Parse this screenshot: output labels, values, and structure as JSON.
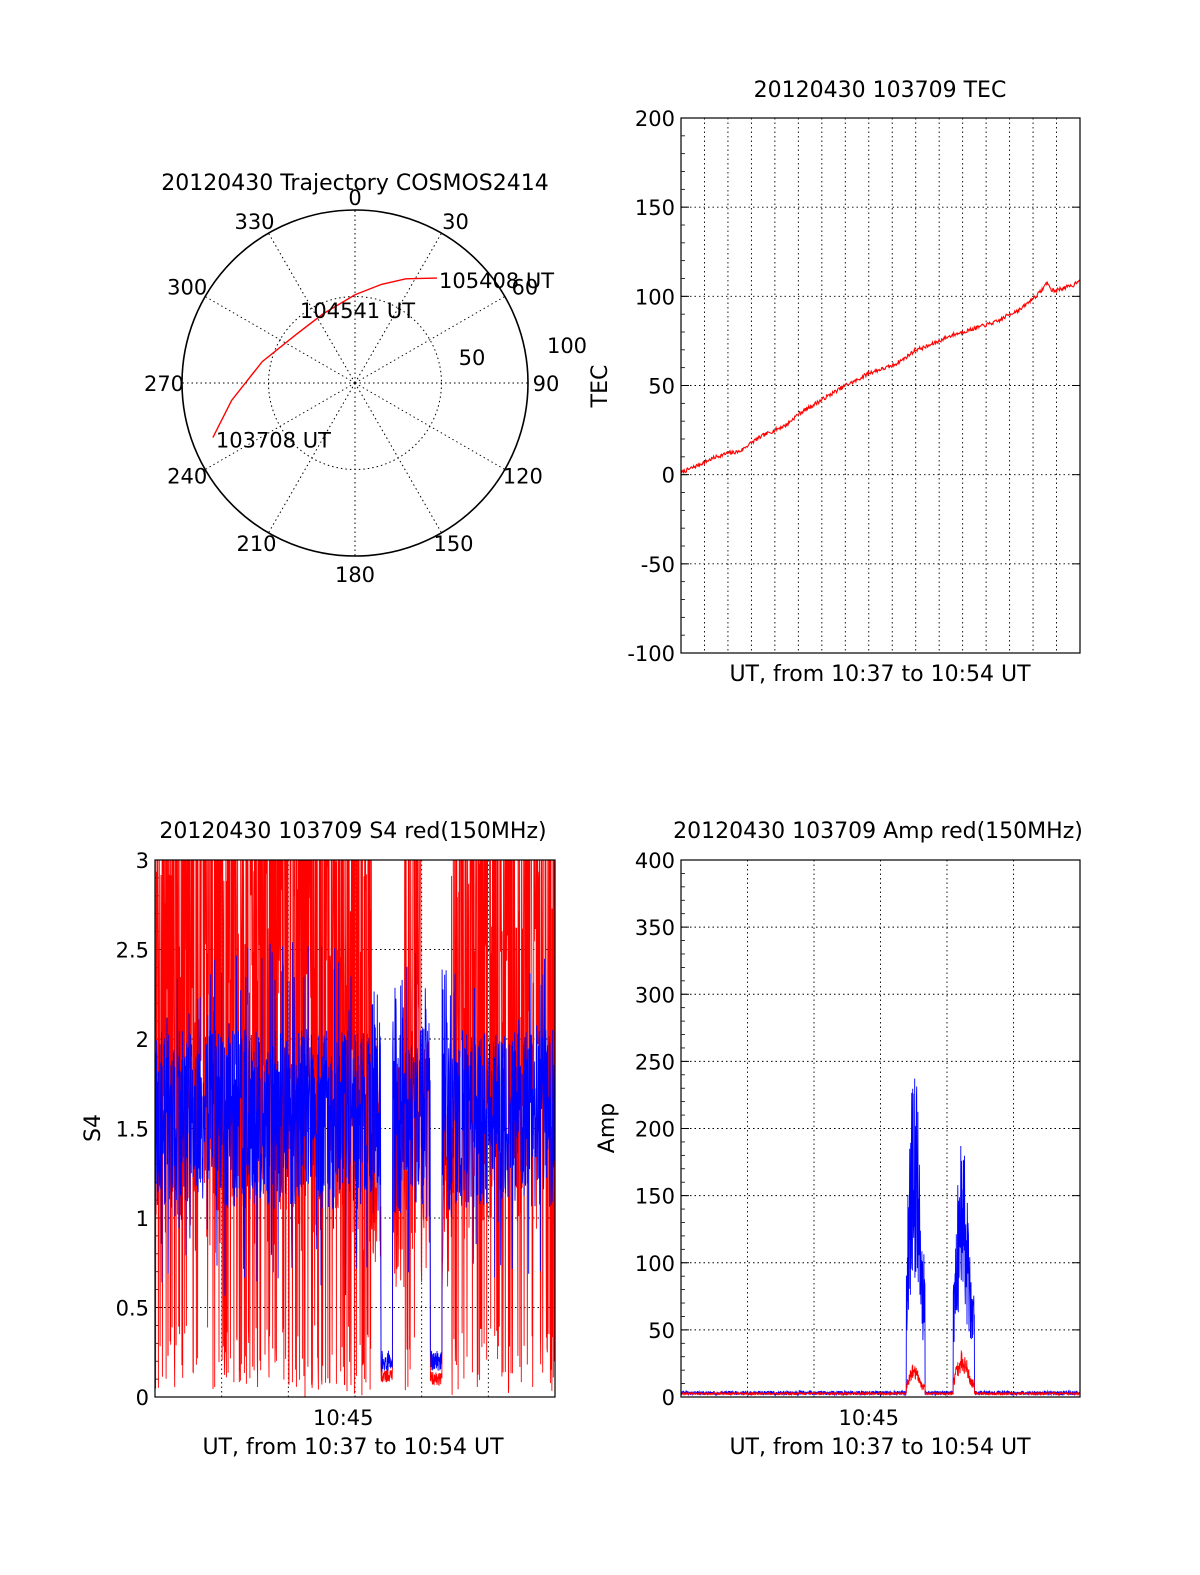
{
  "colors": {
    "red": "#ff0000",
    "blue": "#0000ff",
    "axis": "#000000",
    "grid": "#000000"
  },
  "chart_data": [
    {
      "id": "trajectory",
      "type": "polar",
      "title": "20120430 Trajectory COSMOS2414",
      "angle_labels": [
        "0",
        "30",
        "60",
        "90",
        "120",
        "150",
        "180",
        "210",
        "240",
        "270",
        "300",
        "330"
      ],
      "angle_values": [
        0,
        30,
        60,
        90,
        120,
        150,
        180,
        210,
        240,
        270,
        300,
        330
      ],
      "radius_labels": [
        "50",
        "100"
      ],
      "radius_range": [
        0,
        100
      ],
      "grid": true,
      "track_points": [
        {
          "az": 249,
          "r": 88
        },
        {
          "az": 262,
          "r": 72
        },
        {
          "az": 283,
          "r": 55
        },
        {
          "az": 310,
          "r": 44
        },
        {
          "az": 335,
          "r": 44
        },
        {
          "az": 0,
          "r": 51
        },
        {
          "az": 15,
          "r": 59
        },
        {
          "az": 26,
          "r": 67
        },
        {
          "az": 34,
          "r": 73
        },
        {
          "az": 38,
          "r": 77
        }
      ],
      "annotations": [
        {
          "text": "105408 UT",
          "az": 38,
          "r": 77
        },
        {
          "text": "104541 UT",
          "az": 333,
          "r": 44
        },
        {
          "text": "103708 UT",
          "az": 249,
          "r": 88
        }
      ]
    },
    {
      "id": "tec",
      "type": "line",
      "title": "20120430 103709 TEC",
      "ylabel": "TEC",
      "xlabel": "UT, from 10:37 to 10:54 UT",
      "ylim": [
        -100,
        200
      ],
      "yticks": [
        "-100",
        "-50",
        "0",
        "50",
        "100",
        "150",
        "200"
      ],
      "xlim": [
        0,
        17
      ],
      "grid": true,
      "series": [
        {
          "color": "red",
          "x": [
            0,
            0.5,
            1,
            1.5,
            2,
            2.5,
            3,
            3.5,
            4,
            4.5,
            5,
            5.5,
            6,
            6.5,
            7,
            7.5,
            8,
            8.5,
            9,
            9.5,
            10,
            10.5,
            11,
            11.5,
            12,
            12.5,
            13,
            13.5,
            14,
            14.5,
            15,
            15.2,
            15.4,
            15.6,
            15.75,
            15.9,
            16.1,
            16.4,
            16.7,
            17
          ],
          "y": [
            1,
            4,
            7,
            10,
            12,
            13,
            18,
            22,
            25,
            28,
            34,
            38,
            42,
            46,
            50,
            53,
            57,
            59,
            61,
            65,
            70,
            72,
            75,
            78,
            80,
            82,
            84,
            86,
            90,
            93,
            99,
            101,
            104,
            108,
            104,
            103,
            104,
            105,
            106,
            110
          ]
        }
      ]
    },
    {
      "id": "s4",
      "type": "line",
      "title": "20120430 103709 S4 red(150MHz)",
      "ylabel": "S4",
      "xlabel": "UT, from 10:37 to 10:54 UT",
      "xticklabel": "10:45",
      "xtick_value": 8,
      "ylim": [
        0,
        3
      ],
      "yticks": [
        "0",
        "0.5",
        "1",
        "1.5",
        "2",
        "2.5",
        "3"
      ],
      "xlim": [
        0,
        17
      ],
      "grid": true,
      "gaps": [
        {
          "x": [
            9.6,
            10.1
          ],
          "red": 0.12,
          "blue": 0.2
        },
        {
          "x": [
            11.7,
            12.2
          ],
          "red": 0.1,
          "blue": 0.2
        }
      ],
      "active_ranges": [
        [
          0,
          9.2
        ],
        [
          10.6,
          11.3
        ],
        [
          12.6,
          17
        ]
      ],
      "series": [
        {
          "name": "",
          "color": "red"
        },
        {
          "name": "",
          "color": "blue"
        }
      ]
    },
    {
      "id": "amp",
      "type": "line",
      "title": "20120430 103709 Amp red(150MHz)",
      "ylabel": "Amp",
      "xlabel": "UT, from 10:37 to 10:54 UT",
      "xticklabel": "10:45",
      "xtick_value": 8,
      "ylim": [
        0,
        400
      ],
      "yticks": [
        "0",
        "50",
        "100",
        "150",
        "200",
        "250",
        "300",
        "350",
        "400"
      ],
      "xlim": [
        0,
        17
      ],
      "grid": true,
      "bursts": [
        {
          "x": [
            9.6,
            10.4
          ],
          "blue_peak": 250,
          "red_peak": 25
        },
        {
          "x": [
            11.6,
            12.5
          ],
          "blue_peak": 190,
          "red_peak": 35
        }
      ],
      "baseline": 3,
      "series": [
        {
          "name": "",
          "color": "red"
        },
        {
          "name": "",
          "color": "blue"
        }
      ]
    }
  ]
}
